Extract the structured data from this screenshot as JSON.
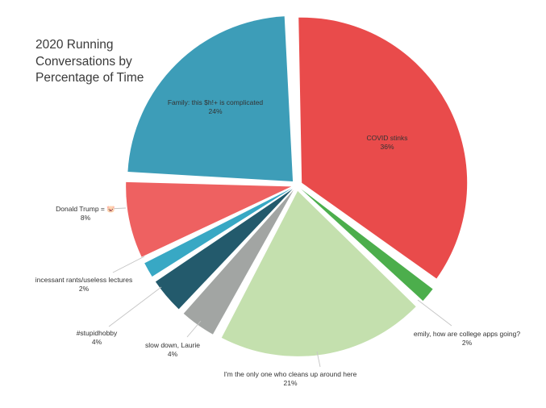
{
  "chart_data": {
    "type": "pie",
    "title": "2020 Running\nConversations by\nPercentage of Time",
    "slices": [
      {
        "label": "COVID stinks",
        "value": 36,
        "value_label": "36%",
        "color": "#e94b4b",
        "label_position": "inside"
      },
      {
        "label": "emily, how are college apps going?",
        "value": 2,
        "value_label": "2%",
        "color": "#4cae4c",
        "label_position": "outside"
      },
      {
        "label": "I'm the only one who cleans up around here",
        "value": 21,
        "value_label": "21%",
        "color": "#c4e0ae",
        "label_position": "outside"
      },
      {
        "label": "slow down, Laurie",
        "value": 4,
        "value_label": "4%",
        "color": "#a2a5a3",
        "label_position": "outside"
      },
      {
        "label": "#stupidhobby",
        "value": 4,
        "value_label": "4%",
        "color": "#235a6c",
        "label_position": "outside"
      },
      {
        "label": "incessant rants/useless lectures",
        "value": 2,
        "value_label": "2%",
        "color": "#38a8c4",
        "label_position": "outside"
      },
      {
        "label": "Donald Trump = 🐷",
        "value": 8,
        "value_label": "8%",
        "color": "#ee6161",
        "label_position": "outside"
      },
      {
        "label": "Family: this $h!+ is complicated",
        "value": 24,
        "value_label": "24%",
        "color": "#3d9db8",
        "label_position": "inside"
      }
    ]
  }
}
